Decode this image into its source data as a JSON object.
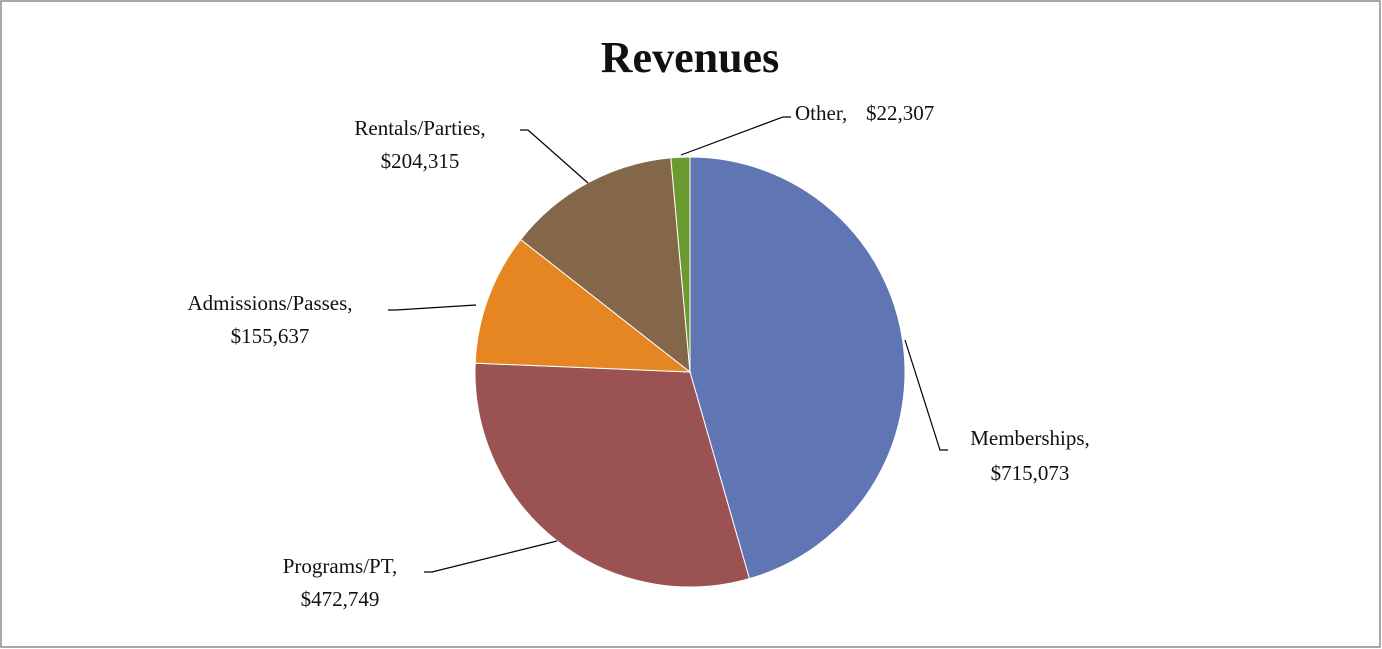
{
  "chart_data": {
    "type": "pie",
    "title": "Revenues",
    "categories": [
      "Memberships,",
      "Programs/PT,",
      "Admissions/Passes,",
      "Rentals/Parties,",
      "Other,"
    ],
    "values": [
      715073,
      472749,
      155637,
      204315,
      22307
    ],
    "value_labels": [
      "$715,073",
      "$472,749",
      "$155,637",
      "$204,315",
      "$22,307"
    ],
    "colors": [
      "#6076b4",
      "#9b5252",
      "#e58623",
      "#836748",
      "#6b9a30"
    ]
  }
}
